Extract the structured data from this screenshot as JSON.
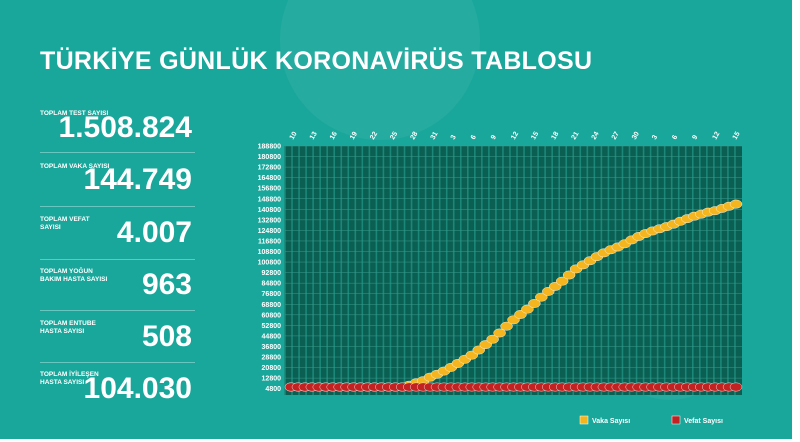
{
  "title": "TÜRKİYE GÜNLÜK KORONAVİRÜS TABLOSU",
  "stats": [
    {
      "label": "TOPLAM TEST SAYISI",
      "value": "1.508.824"
    },
    {
      "label": "TOPLAM VAKA SAYISI",
      "value": "144.749"
    },
    {
      "label": "TOPLAM VEFAT SAYISI",
      "value": "4.007"
    },
    {
      "label": "TOPLAM YOĞUN BAKIM HASTA SAYISI",
      "value": "963"
    },
    {
      "label": "TOPLAM ENTUBE HASTA SAYISI",
      "value": "508"
    },
    {
      "label": "TOPLAM İYİLEŞEN HASTA SAYISI",
      "value": "104.030"
    }
  ],
  "colors": {
    "background": "#1aa79b",
    "plot_background": "#0b5f52",
    "case_series": "#f5b51f",
    "death_series": "#c32222",
    "text": "#ffffff"
  },
  "chart_data": {
    "type": "line",
    "x_ticks": [
      "10",
      "13",
      "16",
      "19",
      "22",
      "25",
      "28",
      "31",
      "3",
      "6",
      "9",
      "12",
      "15",
      "18",
      "21",
      "24",
      "27",
      "30",
      "3",
      "6",
      "9",
      "12",
      "15"
    ],
    "y_ticks": [
      4800,
      12800,
      20800,
      28800,
      36800,
      44800,
      52800,
      60800,
      68800,
      76800,
      84800,
      92800,
      100800,
      108800,
      116800,
      124800,
      132800,
      140800,
      148800,
      156800,
      164800,
      172800,
      180800,
      188800
    ],
    "ylim": [
      0,
      188800
    ],
    "legend_position": "bottom-right",
    "series": [
      {
        "name": "Vaka Sayısı",
        "color": "#f5b51f",
        "values": [
          1,
          1,
          5,
          6,
          18,
          47,
          98,
          191,
          359,
          670,
          947,
          1236,
          1529,
          1872,
          2433,
          3629,
          5698,
          7402,
          9217,
          10827,
          13531,
          15679,
          18135,
          20921,
          23934,
          27069,
          30217,
          34109,
          38226,
          42282,
          47029,
          52167,
          56956,
          61049,
          65111,
          69392,
          74193,
          78546,
          82329,
          86306,
          90980,
          95591,
          98674,
          101790,
          104912,
          107773,
          110130,
          112261,
          114653,
          117589,
          120204,
          122392,
          124375,
          126045,
          127659,
          129491,
          131744,
          133721,
          135569,
          137115,
          138657,
          139771,
          141475,
          143114,
          144749
        ]
      },
      {
        "name": "Vefat Sayısı",
        "color": "#c32222",
        "values": [
          0,
          0,
          0,
          0,
          0,
          1,
          1,
          2,
          3,
          4,
          7,
          9,
          21,
          30,
          37,
          44,
          59,
          75,
          92,
          108,
          131,
          168,
          214,
          277,
          356,
          425,
          501,
          574,
          649,
          725,
          812,
          908,
          1006,
          1101,
          1198,
          1296,
          1403,
          1518,
          1643,
          1769,
          1890,
          2017,
          2140,
          2259,
          2376,
          2491,
          2600,
          2706,
          2805,
          2900,
          2992,
          3081,
          3174,
          3258,
          3336,
          3397,
          3461,
          3520,
          3584,
          3641,
          3689,
          3739,
          3786,
          3841,
          4007
        ]
      }
    ]
  }
}
